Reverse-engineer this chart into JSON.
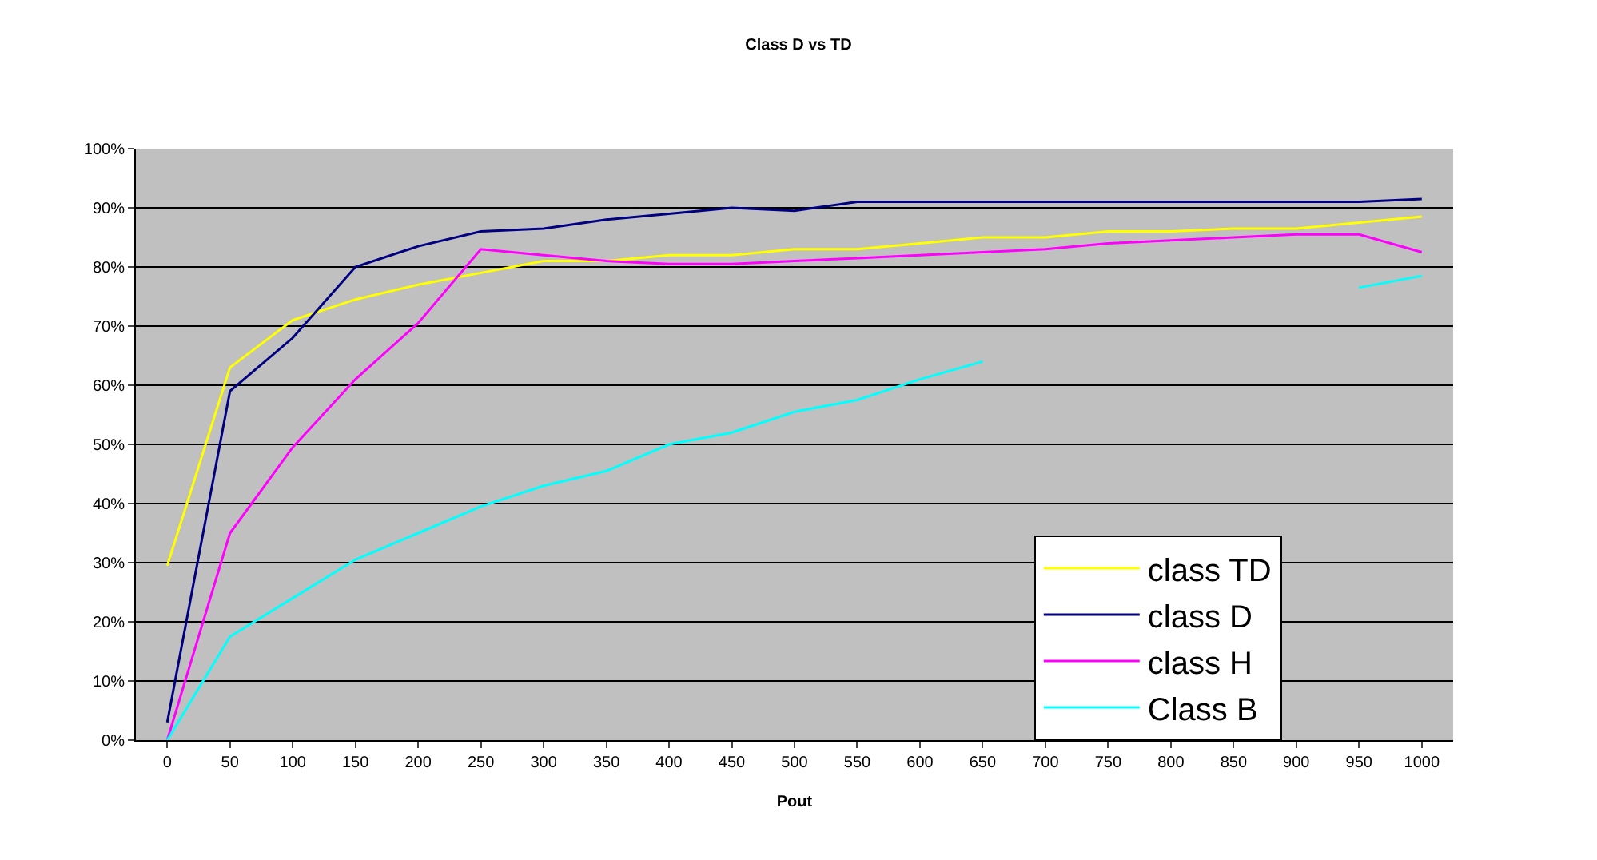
{
  "chart_data": {
    "type": "line",
    "title": "Class D vs TD",
    "xlabel": "Pout",
    "categories": [
      "0",
      "50",
      "100",
      "150",
      "200",
      "250",
      "300",
      "350",
      "400",
      "450",
      "500",
      "550",
      "600",
      "650",
      "700",
      "750",
      "800",
      "850",
      "900",
      "950",
      "1000"
    ],
    "series": [
      {
        "name": "class TD",
        "color": "#ffff00",
        "values": [
          29.5,
          63,
          71,
          74.5,
          77,
          79,
          81,
          81,
          82,
          82,
          83,
          83,
          84,
          85,
          85,
          86,
          86,
          86.5,
          86.5,
          87.5,
          88.5
        ]
      },
      {
        "name": "class D",
        "color": "#000080",
        "values": [
          3,
          59,
          68,
          80,
          83.5,
          86,
          86.5,
          88,
          89,
          90,
          89.5,
          91,
          91,
          91,
          91,
          91,
          91,
          91,
          91,
          91,
          91.5
        ]
      },
      {
        "name": "class H",
        "color": "#ff00ff",
        "values": [
          0,
          35,
          49.5,
          61,
          70.5,
          83,
          82,
          81,
          80.5,
          80.5,
          81,
          81.5,
          82,
          82.5,
          83,
          84,
          84.5,
          85,
          85.5,
          85.5,
          82.5
        ]
      },
      {
        "name": "Class B",
        "color": "#00ffff",
        "values": [
          0,
          17.5,
          24,
          30.5,
          35,
          39.5,
          43,
          45.5,
          50,
          52,
          55.5,
          57.5,
          61,
          64,
          null,
          null,
          null,
          null,
          null,
          76.5,
          78.5
        ]
      }
    ],
    "ylim": [
      0,
      100
    ],
    "yticks": [
      {
        "value": 0,
        "label": "0%"
      },
      {
        "value": 10,
        "label": "10%"
      },
      {
        "value": 20,
        "label": "20%"
      },
      {
        "value": 30,
        "label": "30%"
      },
      {
        "value": 40,
        "label": "40%"
      },
      {
        "value": 50,
        "label": "50%"
      },
      {
        "value": 60,
        "label": "60%"
      },
      {
        "value": 70,
        "label": "70%"
      },
      {
        "value": 80,
        "label": "80%"
      },
      {
        "value": 90,
        "label": "90%"
      },
      {
        "value": 100,
        "label": "100%"
      }
    ],
    "grid": "y",
    "legend": "bottom right",
    "marker": "none",
    "line_style": "solid"
  }
}
